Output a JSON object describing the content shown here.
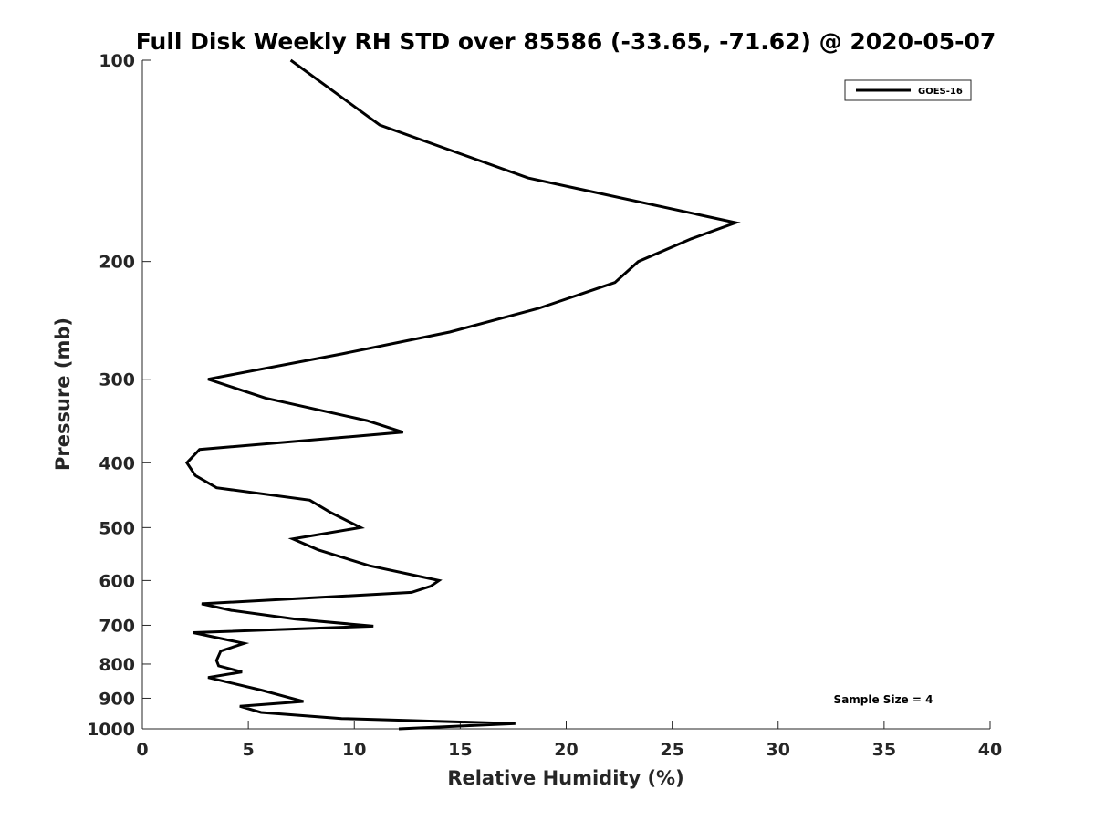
{
  "chart_data": {
    "type": "line",
    "title": "Full Disk Weekly RH STD over 85586 (-33.65, -71.62) @ 2020-05-07",
    "xlabel": "Relative Humidity (%)",
    "ylabel": "Pressure (mb)",
    "xlim": [
      0,
      40
    ],
    "ylim": [
      100,
      1000
    ],
    "y_scale": "log",
    "y_reversed": true,
    "xticks": [
      0,
      5,
      10,
      15,
      20,
      25,
      30,
      35,
      40
    ],
    "yticks": [
      100,
      200,
      300,
      400,
      500,
      600,
      700,
      800,
      900,
      1000
    ],
    "legend": {
      "location": "top-right",
      "entries": [
        "GOES-16"
      ]
    },
    "annotation": "Sample Size = 4",
    "grid": false,
    "series": [
      {
        "name": "GOES-16",
        "color": "#000000",
        "points": [
          [
            7.0,
            100
          ],
          [
            11.2,
            125
          ],
          [
            18.2,
            150
          ],
          [
            28.0,
            175
          ],
          [
            25.9,
            185
          ],
          [
            23.4,
            200
          ],
          [
            22.3,
            215
          ],
          [
            18.7,
            235
          ],
          [
            14.5,
            255
          ],
          [
            9.4,
            275
          ],
          [
            3.1,
            300
          ],
          [
            5.8,
            320
          ],
          [
            10.6,
            346
          ],
          [
            12.3,
            360
          ],
          [
            2.7,
            382
          ],
          [
            2.1,
            400
          ],
          [
            2.5,
            418
          ],
          [
            3.5,
            436
          ],
          [
            7.9,
            455
          ],
          [
            8.9,
            475
          ],
          [
            10.3,
            500
          ],
          [
            7.1,
            520
          ],
          [
            8.3,
            540
          ],
          [
            10.7,
            570
          ],
          [
            14.0,
            600
          ],
          [
            13.6,
            612
          ],
          [
            12.7,
            625
          ],
          [
            2.8,
            650
          ],
          [
            4.2,
            665
          ],
          [
            7.2,
            685
          ],
          [
            10.9,
            702
          ],
          [
            2.4,
            718
          ],
          [
            4.8,
            745
          ],
          [
            3.7,
            765
          ],
          [
            3.5,
            790
          ],
          [
            3.6,
            805
          ],
          [
            4.7,
            822
          ],
          [
            3.1,
            838
          ],
          [
            5.6,
            875
          ],
          [
            7.6,
            910
          ],
          [
            4.6,
            925
          ],
          [
            5.6,
            945
          ],
          [
            9.4,
            965
          ],
          [
            17.6,
            982
          ],
          [
            15.2,
            990
          ],
          [
            12.1,
            1000
          ]
        ]
      }
    ]
  }
}
